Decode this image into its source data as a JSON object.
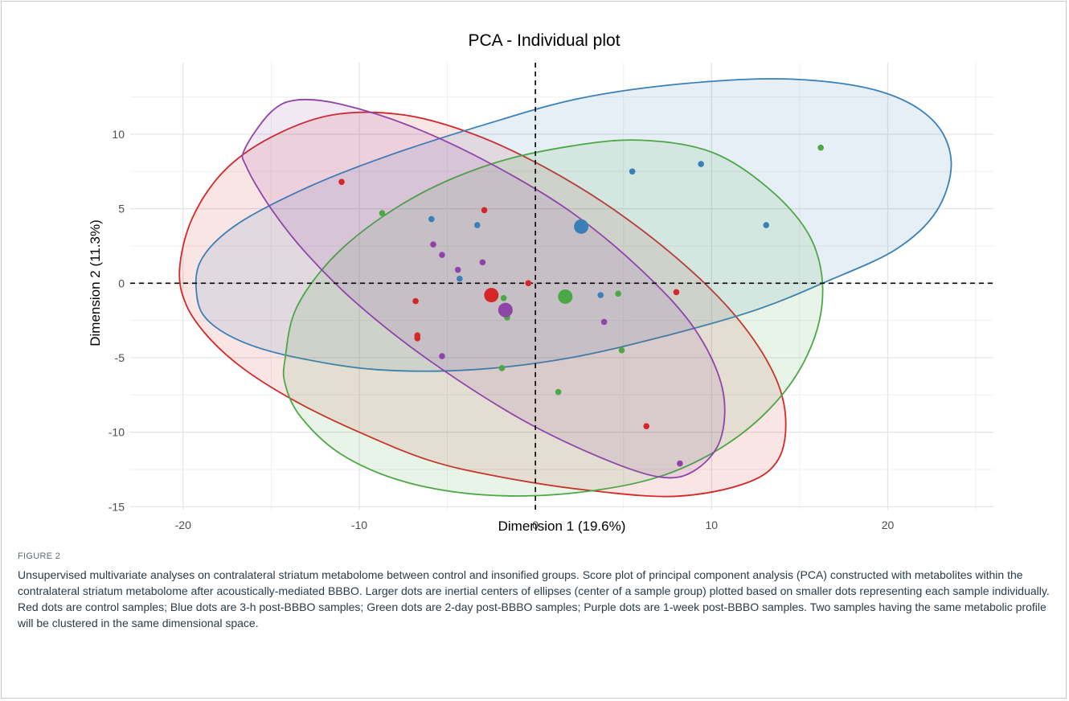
{
  "figure": {
    "label": "FIGURE 2",
    "caption": "Unsupervised multivariate analyses on contralateral striatum metabolome between control and insonified groups. Score plot of principal component analysis (PCA) constructed with metabolites within the contralateral striatum metabolome after acoustically-mediated BBBO. Larger dots are inertial centers of ellipses (center of a sample group) plotted based on smaller dots representing each sample individually. Red dots are control samples; Blue dots are 3-h post-BBBO samples; Green dots are 2-day post-BBBO samples; Purple dots are 1-week post-BBBO samples. Two samples having the same metabolic profile will be clustered in the same dimensional space."
  },
  "chart_data": {
    "type": "scatter",
    "title": "PCA - Individual plot",
    "xlabel": "Dimension 1 (19.6%)",
    "ylabel": "Dimension 2 (11.3%)",
    "xlim": [
      -23,
      26
    ],
    "ylim": [
      -15.2,
      14.8
    ],
    "xticks": [
      -20,
      -10,
      0,
      10,
      20
    ],
    "yticks": [
      -15,
      -10,
      -5,
      0,
      5,
      10
    ],
    "grid": true,
    "reference_lines": {
      "x": 0,
      "y": 0,
      "style": "dashed"
    },
    "colors": {
      "red": "#d62728",
      "blue": "#3a7fb8",
      "green": "#4ba845",
      "purple": "#8e44a8"
    },
    "series": [
      {
        "color": "#d62728",
        "points": [
          [
            -11.0,
            6.8
          ],
          [
            -2.9,
            4.9
          ],
          [
            -0.4,
            0.0
          ],
          [
            -6.8,
            -1.2
          ],
          [
            -6.7,
            -3.5
          ],
          [
            -6.7,
            -3.7
          ],
          [
            8.0,
            -0.6
          ],
          [
            6.3,
            -9.6
          ]
        ],
        "centroid": [
          -2.5,
          -0.8
        ],
        "ellipse": {
          "points": [
            [
              -20.2,
              0.9
            ],
            [
              -19.5,
              4.3
            ],
            [
              -17.7,
              7.5
            ],
            [
              -15.0,
              9.8
            ],
            [
              -11.5,
              11.3
            ],
            [
              -7.5,
              11.3
            ],
            [
              -3.5,
              10.0
            ],
            [
              0.5,
              7.8
            ],
            [
              4.5,
              4.9
            ],
            [
              8.5,
              1.2
            ],
            [
              11.5,
              -2.4
            ],
            [
              13.5,
              -6.0
            ],
            [
              14.2,
              -9.0
            ],
            [
              13.8,
              -11.8
            ],
            [
              12.0,
              -13.4
            ],
            [
              8.0,
              -14.3
            ],
            [
              3.0,
              -13.9
            ],
            [
              -2.0,
              -13.0
            ],
            [
              -6.0,
              -11.9
            ],
            [
              -10.0,
              -10.0
            ],
            [
              -13.5,
              -8.0
            ],
            [
              -16.5,
              -5.8
            ],
            [
              -18.5,
              -3.7
            ],
            [
              -19.8,
              -1.5
            ]
          ]
        }
      },
      {
        "color": "#3a7fb8",
        "points": [
          [
            -5.9,
            4.3
          ],
          [
            -3.3,
            3.9
          ],
          [
            -4.3,
            0.3
          ],
          [
            3.7,
            -0.8
          ],
          [
            5.5,
            7.5
          ],
          [
            9.4,
            8.0
          ],
          [
            13.1,
            3.9
          ]
        ],
        "centroid": [
          2.6,
          3.8
        ],
        "ellipse": {
          "points": [
            [
              -19.2,
              -1.0
            ],
            [
              -19.0,
              1.5
            ],
            [
              -17.0,
              3.9
            ],
            [
              -13.0,
              6.4
            ],
            [
              -8.5,
              8.5
            ],
            [
              -3.0,
              10.6
            ],
            [
              2.5,
              12.4
            ],
            [
              8.5,
              13.4
            ],
            [
              14.5,
              13.7
            ],
            [
              19.5,
              12.9
            ],
            [
              22.5,
              11.0
            ],
            [
              23.6,
              8.2
            ],
            [
              22.8,
              4.9
            ],
            [
              20.5,
              2.3
            ],
            [
              16.5,
              0.1
            ],
            [
              12.5,
              -1.8
            ],
            [
              7.5,
              -3.5
            ],
            [
              2.0,
              -5.0
            ],
            [
              -3.5,
              -5.8
            ],
            [
              -9.0,
              -5.8
            ],
            [
              -13.5,
              -5.0
            ],
            [
              -16.5,
              -4.0
            ],
            [
              -18.5,
              -2.6
            ]
          ]
        }
      },
      {
        "color": "#4ba845",
        "points": [
          [
            -8.7,
            4.7
          ],
          [
            -1.8,
            -1.0
          ],
          [
            -1.6,
            -2.3
          ],
          [
            -1.9,
            -5.7
          ],
          [
            4.7,
            -0.7
          ],
          [
            4.9,
            -4.5
          ],
          [
            1.3,
            -7.3
          ],
          [
            16.2,
            9.1
          ]
        ],
        "centroid": [
          1.7,
          -0.9
        ],
        "ellipse": {
          "points": [
            [
              -14.2,
              -5.0
            ],
            [
              -13.5,
              -1.5
            ],
            [
              -11.0,
              2.3
            ],
            [
              -7.0,
              5.7
            ],
            [
              -2.5,
              8.0
            ],
            [
              2.0,
              9.2
            ],
            [
              6.0,
              9.6
            ],
            [
              10.0,
              8.8
            ],
            [
              13.2,
              6.4
            ],
            [
              15.5,
              3.3
            ],
            [
              16.3,
              -0.1
            ],
            [
              15.8,
              -3.8
            ],
            [
              14.0,
              -7.5
            ],
            [
              11.0,
              -10.7
            ],
            [
              7.0,
              -13.0
            ],
            [
              2.0,
              -14.1
            ],
            [
              -3.0,
              -14.2
            ],
            [
              -7.5,
              -13.3
            ],
            [
              -11.0,
              -11.5
            ],
            [
              -13.3,
              -9.0
            ],
            [
              -14.2,
              -6.8
            ]
          ]
        }
      },
      {
        "color": "#8e44a8",
        "points": [
          [
            -5.8,
            2.6
          ],
          [
            -5.3,
            1.9
          ],
          [
            -4.4,
            0.9
          ],
          [
            -3.0,
            1.4
          ],
          [
            -5.3,
            -4.9
          ],
          [
            3.9,
            -2.6
          ],
          [
            8.2,
            -12.1
          ]
        ],
        "centroid": [
          -1.7,
          -1.8
        ],
        "ellipse": {
          "points": [
            [
              -16.5,
              9.0
            ],
            [
              -15.0,
              11.5
            ],
            [
              -13.5,
              12.3
            ],
            [
              -11.0,
              12.0
            ],
            [
              -7.0,
              10.5
            ],
            [
              -2.5,
              8.0
            ],
            [
              2.0,
              4.8
            ],
            [
              6.0,
              0.9
            ],
            [
              9.0,
              -3.0
            ],
            [
              10.6,
              -7.0
            ],
            [
              10.5,
              -10.5
            ],
            [
              9.0,
              -12.6
            ],
            [
              7.0,
              -13.0
            ],
            [
              3.5,
              -11.6
            ],
            [
              -1.0,
              -9.0
            ],
            [
              -6.0,
              -5.2
            ],
            [
              -10.0,
              -1.5
            ],
            [
              -13.0,
              2.0
            ],
            [
              -15.0,
              5.0
            ],
            [
              -16.4,
              7.8
            ]
          ]
        }
      }
    ]
  }
}
